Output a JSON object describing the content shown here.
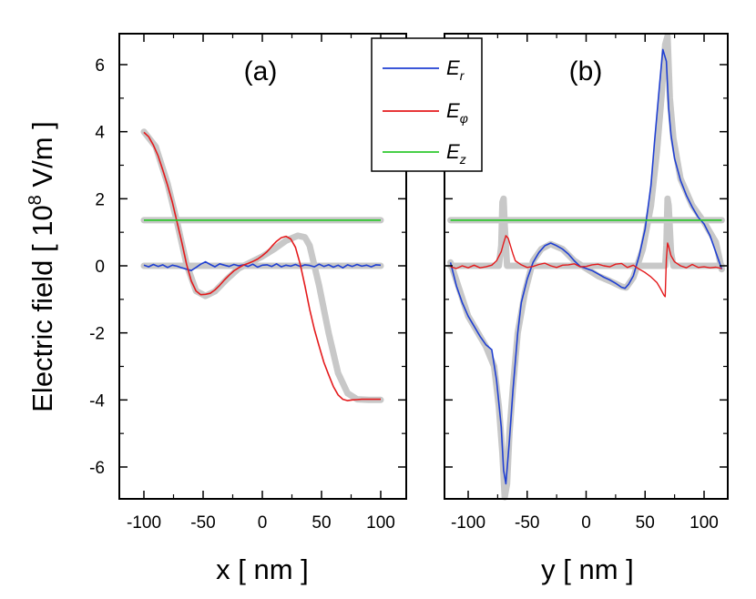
{
  "chart_data": [
    {
      "type": "line",
      "panel": "(a)",
      "xlabel": "x [ nm ]",
      "ylabel": "Electric field [ 10^8 V/m ]",
      "ylabel_parts": {
        "before": "Electric field [ 10",
        "sup": "8",
        "after": " V/m ]"
      },
      "xlim": [
        -120,
        120
      ],
      "ylim": [
        -7,
        7
      ],
      "xticks": [
        -100,
        -50,
        0,
        50,
        100
      ],
      "yticks": [
        -6,
        -4,
        -2,
        0,
        2,
        4,
        6
      ],
      "series": [
        {
          "name": "E_r",
          "label_main": "E",
          "label_sub": "r",
          "color": "#1f3fd2",
          "width": 1.6,
          "x": [
            -100,
            -96,
            -92,
            -88,
            -84,
            -80,
            -76,
            -72,
            -68,
            -64,
            -60,
            -56,
            -52,
            -48,
            -44,
            -40,
            -36,
            -32,
            -28,
            -24,
            -20,
            -16,
            -12,
            -8,
            -4,
            0,
            4,
            8,
            12,
            16,
            20,
            24,
            28,
            32,
            36,
            40,
            44,
            48,
            52,
            56,
            60,
            64,
            68,
            72,
            76,
            80,
            84,
            88,
            92,
            96,
            100
          ],
          "y": [
            0.02,
            -0.03,
            0.04,
            -0.02,
            0.03,
            -0.05,
            0.02,
            -0.01,
            -0.06,
            -0.1,
            -0.14,
            -0.05,
            0.05,
            0.12,
            0.04,
            -0.03,
            0.06,
            0.02,
            -0.02,
            0.04,
            0.0,
            0.03,
            -0.02,
            0.05,
            -0.04,
            0.02,
            0.03,
            -0.02,
            0.06,
            -0.03,
            0.02,
            -0.01,
            0.04,
            -0.02,
            0.03,
            0.01,
            -0.03,
            0.05,
            -0.02,
            0.03,
            -0.04,
            0.02,
            -0.06,
            0.03,
            -0.02,
            0.04,
            -0.01,
            0.02,
            -0.03,
            0.03,
            0.02
          ]
        },
        {
          "name": "E_phi",
          "label_main": "E",
          "label_sub": "φ",
          "color": "#e41a1c",
          "width": 1.6,
          "x": [
            -100,
            -96,
            -92,
            -88,
            -84,
            -80,
            -76,
            -72,
            -68,
            -64,
            -60,
            -56,
            -52,
            -48,
            -44,
            -40,
            -36,
            -32,
            -28,
            -24,
            -20,
            -16,
            -12,
            -8,
            -4,
            0,
            4,
            8,
            12,
            16,
            20,
            24,
            28,
            32,
            36,
            40,
            44,
            48,
            52,
            56,
            60,
            64,
            68,
            72,
            76,
            80,
            84,
            88,
            92,
            96,
            100
          ],
          "y": [
            3.98,
            3.85,
            3.6,
            3.28,
            2.85,
            2.4,
            1.9,
            1.3,
            0.7,
            0.05,
            -0.45,
            -0.75,
            -0.86,
            -0.85,
            -0.82,
            -0.72,
            -0.58,
            -0.42,
            -0.28,
            -0.15,
            -0.06,
            0.02,
            0.07,
            0.13,
            0.2,
            0.3,
            0.42,
            0.58,
            0.73,
            0.84,
            0.88,
            0.8,
            0.55,
            0.05,
            -0.6,
            -1.3,
            -1.9,
            -2.4,
            -2.88,
            -3.25,
            -3.6,
            -3.85,
            -3.98,
            -4.02,
            -4.0,
            -3.99,
            -3.98,
            -3.98,
            -3.98,
            -3.98,
            -3.98
          ],
          "x_override_note": "x values are stretched so the last point lies at 100"
        },
        {
          "name": "E_z",
          "label_main": "E",
          "label_sub": "z",
          "color": "#2ec82e",
          "width": 1.8,
          "x": [
            -100,
            -50,
            0,
            50,
            100
          ],
          "y": [
            1.36,
            1.36,
            1.36,
            1.36,
            1.36
          ]
        }
      ],
      "reference_series": [
        {
          "name": "reference_r",
          "x": [
            -100,
            100
          ],
          "y": [
            0,
            0
          ]
        },
        {
          "name": "reference_phi",
          "x": [
            -100,
            -90,
            -80,
            -72,
            -64,
            -56,
            -48,
            -40,
            -30,
            -20,
            -10,
            0,
            10,
            20,
            30,
            36,
            40,
            48,
            56,
            64,
            72,
            80,
            90,
            100
          ],
          "y": [
            4.0,
            3.55,
            2.45,
            1.3,
            0.05,
            -0.75,
            -0.9,
            -0.76,
            -0.4,
            -0.08,
            0.1,
            0.28,
            0.5,
            0.75,
            0.9,
            0.85,
            0.6,
            -0.6,
            -2.0,
            -3.2,
            -3.8,
            -3.98,
            -4.0,
            -4.0
          ]
        },
        {
          "name": "reference_z",
          "x": [
            -100,
            100
          ],
          "y": [
            1.36,
            1.36
          ]
        }
      ]
    },
    {
      "type": "line",
      "panel": "(b)",
      "xlabel": "y [ nm ]",
      "xlim": [
        -120,
        120
      ],
      "ylim": [
        -7,
        7
      ],
      "xticks": [
        -100,
        -50,
        0,
        50,
        100
      ],
      "yticks": [
        -6,
        -4,
        -2,
        0,
        2,
        4,
        6
      ],
      "series": [
        {
          "name": "E_r",
          "color": "#1f3fd2",
          "width": 1.6,
          "x": [
            -115,
            -110,
            -105,
            -100,
            -95,
            -90,
            -85,
            -80,
            -76,
            -72,
            -70,
            -68,
            -65,
            -62,
            -58,
            -55,
            -50,
            -45,
            -40,
            -35,
            -30,
            -25,
            -20,
            -15,
            -10,
            -5,
            0,
            5,
            10,
            15,
            20,
            25,
            30,
            33,
            36,
            40,
            45,
            50,
            55,
            58,
            62,
            65,
            68,
            70,
            72,
            75,
            80,
            85,
            90,
            95,
            100,
            105,
            110,
            115
          ],
          "y": [
            0.1,
            -0.6,
            -1.1,
            -1.5,
            -1.8,
            -2.1,
            -2.35,
            -2.5,
            -3.4,
            -4.8,
            -6.1,
            -6.5,
            -5.2,
            -3.7,
            -2.0,
            -1.1,
            -0.4,
            0.1,
            0.4,
            0.6,
            0.68,
            0.6,
            0.5,
            0.35,
            0.15,
            -0.02,
            -0.08,
            -0.14,
            -0.24,
            -0.34,
            -0.42,
            -0.52,
            -0.64,
            -0.67,
            -0.55,
            -0.3,
            0.3,
            1.1,
            2.4,
            3.7,
            5.3,
            6.45,
            6.1,
            4.7,
            3.9,
            3.2,
            2.55,
            2.1,
            1.75,
            1.45,
            1.25,
            0.9,
            0.4,
            -0.1
          ]
        },
        {
          "name": "E_phi",
          "color": "#e41a1c",
          "width": 1.4,
          "x": [
            -115,
            -110,
            -105,
            -100,
            -95,
            -90,
            -85,
            -80,
            -76,
            -72,
            -70,
            -68,
            -66,
            -64,
            -62,
            -60,
            -55,
            -50,
            -45,
            -40,
            -35,
            -30,
            -25,
            -20,
            -15,
            -10,
            -5,
            0,
            5,
            10,
            15,
            20,
            25,
            30,
            35,
            40,
            45,
            50,
            55,
            60,
            63,
            66,
            67,
            68,
            69,
            70,
            72,
            75,
            80,
            85,
            90,
            95,
            100,
            105,
            110,
            115
          ],
          "y": [
            -0.03,
            -0.08,
            0.0,
            -0.06,
            0.02,
            -0.06,
            -0.03,
            0.02,
            0.15,
            0.42,
            0.68,
            0.9,
            0.82,
            0.58,
            0.35,
            0.15,
            0.03,
            -0.05,
            -0.02,
            0.04,
            0.08,
            0.0,
            -0.05,
            0.02,
            0.03,
            0.06,
            -0.03,
            -0.02,
            0.03,
            0.05,
            0.0,
            -0.03,
            0.05,
            0.07,
            -0.05,
            0.02,
            -0.1,
            -0.2,
            -0.33,
            -0.5,
            -0.68,
            -0.88,
            -0.92,
            0.2,
            0.68,
            0.58,
            0.3,
            0.12,
            0.0,
            -0.06,
            0.04,
            -0.05,
            -0.03,
            -0.06,
            -0.04,
            -0.08
          ]
        },
        {
          "name": "E_z",
          "color": "#2ec82e",
          "width": 1.8,
          "x": [
            -115,
            -50,
            0,
            50,
            115
          ],
          "y": [
            1.36,
            1.36,
            1.36,
            1.36,
            1.36
          ]
        }
      ],
      "reference_series": [
        {
          "name": "reference_r",
          "x": [
            -115,
            -100,
            -85,
            -78,
            -74,
            -71,
            -69,
            -67,
            -65,
            -62,
            -58,
            -52,
            -45,
            -38,
            -30,
            -20,
            -10,
            0,
            10,
            20,
            30,
            34,
            40,
            48,
            55,
            60,
            64,
            67,
            69,
            71,
            74,
            80,
            90,
            100,
            110,
            115
          ],
          "y": [
            0.1,
            -1.5,
            -2.4,
            -3.0,
            -4.2,
            -5.6,
            -6.9,
            -6.5,
            -5.0,
            -3.6,
            -2.0,
            -0.8,
            0.15,
            0.5,
            0.65,
            0.5,
            0.15,
            -0.08,
            -0.3,
            -0.45,
            -0.62,
            -0.65,
            -0.35,
            0.5,
            1.8,
            3.4,
            5.1,
            6.6,
            6.85,
            5.0,
            3.8,
            2.6,
            1.8,
            1.3,
            0.7,
            -0.1
          ]
        },
        {
          "name": "reference_phi_gray",
          "x": [
            -115,
            -74,
            -72,
            -71,
            -70,
            -69,
            -67,
            -65,
            65,
            67,
            68,
            69,
            70,
            72,
            74,
            115
          ],
          "y": [
            0.0,
            0.0,
            0.6,
            1.9,
            2.0,
            1.2,
            0.0,
            0.0,
            0.0,
            0.0,
            0.6,
            2.0,
            1.8,
            0.4,
            0.0,
            0.0
          ]
        },
        {
          "name": "reference_z",
          "x": [
            -115,
            115
          ],
          "y": [
            1.36,
            1.36
          ]
        }
      ]
    }
  ],
  "legend": {
    "placement": "top-center",
    "entries": [
      {
        "main": "E",
        "sub": "r"
      },
      {
        "main": "E",
        "sub": "φ"
      },
      {
        "main": "E",
        "sub": "z"
      }
    ]
  },
  "colors": {
    "E_r": "#1f3fd2",
    "E_phi": "#e41a1c",
    "E_z": "#2ec82e",
    "reference": "#c8c8c8"
  }
}
